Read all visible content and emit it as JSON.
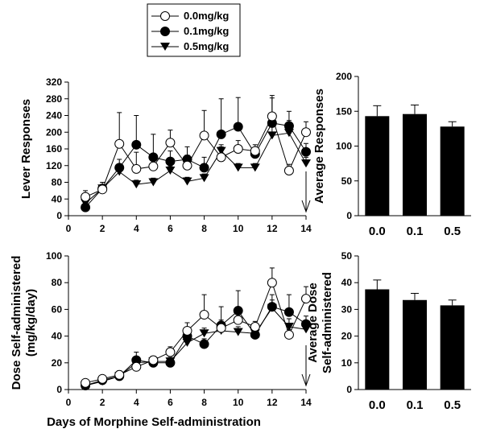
{
  "legend": {
    "entries": [
      {
        "label": "0.0mg/kg",
        "marker": "open-circle"
      },
      {
        "label": "0.1mg/kg",
        "marker": "filled-circle"
      },
      {
        "label": "0.5mg/kg",
        "marker": "filled-triangle-down"
      }
    ]
  },
  "shared_xlabel": "Days of Morphine Self-administration",
  "chart_data": [
    {
      "id": "lever",
      "type": "line",
      "ylabel": "Lever Responses",
      "xlabel": "",
      "xlim": [
        0,
        14
      ],
      "xticks": [
        0,
        2,
        4,
        6,
        8,
        10,
        12,
        14
      ],
      "ylim": [
        0,
        320
      ],
      "yticks": [
        0,
        40,
        80,
        120,
        160,
        200,
        240,
        280,
        320
      ],
      "x": [
        1,
        2,
        3,
        4,
        5,
        6,
        7,
        8,
        9,
        10,
        11,
        12,
        13,
        14
      ],
      "series": [
        {
          "name": "0.0mg/kg",
          "marker": "open-circle",
          "values": [
            45,
            63,
            172,
            112,
            118,
            175,
            120,
            192,
            140,
            160,
            155,
            238,
            108,
            200
          ],
          "errors": [
            15,
            10,
            75,
            40,
            20,
            30,
            25,
            60,
            25,
            20,
            15,
            50,
            15,
            25
          ]
        },
        {
          "name": "0.1mg/kg",
          "marker": "filled-circle",
          "values": [
            20,
            65,
            115,
            170,
            140,
            130,
            135,
            115,
            195,
            213,
            148,
            222,
            215,
            153
          ],
          "errors": [
            10,
            15,
            20,
            70,
            55,
            25,
            30,
            25,
            85,
            70,
            15,
            60,
            35,
            20
          ]
        },
        {
          "name": "0.5mg/kg",
          "marker": "filled-triangle-down",
          "values": [
            30,
            65,
            105,
            75,
            80,
            108,
            82,
            90,
            155,
            115,
            115,
            192,
            198,
            125
          ],
          "errors": [
            10,
            10,
            15,
            10,
            10,
            10,
            10,
            10,
            15,
            10,
            10,
            25,
            30,
            15
          ]
        }
      ],
      "annotation": "arrow at day 14"
    },
    {
      "id": "lever-avg",
      "type": "bar",
      "ylabel": "Average Responses",
      "categories": [
        "0.0",
        "0.1",
        "0.5"
      ],
      "values": [
        143,
        146,
        128
      ],
      "errors": [
        15,
        13,
        7
      ],
      "ylim": [
        0,
        200
      ],
      "yticks": [
        0,
        50,
        100,
        150,
        200
      ]
    },
    {
      "id": "dose",
      "type": "line",
      "ylabel_lines": [
        "Dose Self-administered",
        "(mg/kg/day)"
      ],
      "xlabel": "",
      "xlim": [
        0,
        14
      ],
      "xticks": [
        0,
        2,
        4,
        6,
        8,
        10,
        12,
        14
      ],
      "ylim": [
        0,
        100
      ],
      "yticks": [
        0,
        20,
        40,
        60,
        80,
        100
      ],
      "x": [
        1,
        2,
        3,
        4,
        5,
        6,
        7,
        8,
        9,
        10,
        11,
        12,
        13,
        14
      ],
      "series": [
        {
          "name": "0.0mg/kg",
          "marker": "open-circle",
          "values": [
            5,
            8,
            11,
            17,
            22,
            28,
            44,
            56,
            46,
            52,
            47,
            80,
            41,
            68
          ],
          "errors": [
            1,
            2,
            3,
            3,
            3,
            4,
            6,
            15,
            6,
            6,
            4,
            11,
            4,
            9
          ]
        },
        {
          "name": "0.1mg/kg",
          "marker": "filled-circle",
          "values": [
            3,
            7,
            10,
            22,
            20,
            20,
            40,
            34,
            48,
            59,
            41,
            62,
            58,
            49
          ],
          "errors": [
            1,
            2,
            2,
            6,
            5,
            3,
            5,
            4,
            14,
            15,
            3,
            9,
            13,
            6
          ]
        },
        {
          "name": "0.5mg/kg",
          "marker": "filled-triangle-down",
          "values": [
            3,
            6,
            10,
            20,
            21,
            21,
            35,
            42,
            44,
            43,
            42,
            61,
            47,
            45
          ],
          "errors": [
            1,
            1,
            2,
            3,
            3,
            3,
            4,
            4,
            5,
            4,
            3,
            6,
            6,
            5
          ]
        }
      ],
      "annotation": "arrow at day 14"
    },
    {
      "id": "dose-avg",
      "type": "bar",
      "ylabel_lines": [
        "Average Dose",
        "Self-administered"
      ],
      "categories": [
        "0.0",
        "0.1",
        "0.5"
      ],
      "values": [
        37.5,
        33.5,
        31.5
      ],
      "errors": [
        3.5,
        2.5,
        2
      ],
      "ylim": [
        0,
        50
      ],
      "yticks": [
        0,
        10,
        20,
        30,
        40,
        50
      ]
    }
  ]
}
